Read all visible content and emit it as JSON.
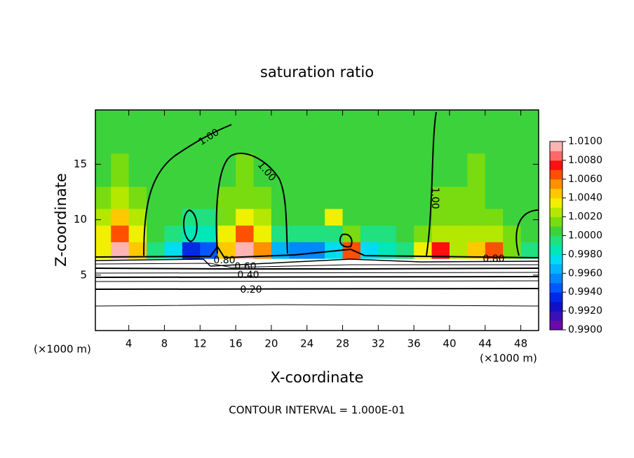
{
  "chart_data": {
    "type": "contour",
    "title": "saturation ratio",
    "x_label": "X-coordinate",
    "y_label": "Z-coordinate",
    "x_unit": "(×1000 m)",
    "x_unit_right": "(×1000 m)",
    "footer": "CONTOUR INTERVAL = 1.000E-01",
    "xlim": [
      0.25,
      50
    ],
    "ylim": [
      0,
      19.9
    ],
    "xticks": [
      4,
      8,
      12,
      16,
      20,
      24,
      28,
      32,
      36,
      40,
      44,
      48
    ],
    "yticks": [
      5,
      10,
      15
    ],
    "xbins": [
      0,
      2,
      4,
      6,
      8,
      10,
      12,
      14,
      16,
      18,
      20,
      22,
      24,
      26,
      28,
      30,
      32,
      34,
      36,
      38,
      40,
      42,
      44,
      46,
      48,
      50
    ],
    "ybins": [
      6.5,
      8,
      9.5,
      11,
      13,
      16,
      19.9
    ],
    "z": [
      [
        1.003,
        1.009,
        1.004,
        0.999,
        0.997,
        0.993,
        0.994,
        1.004,
        1.009,
        1.005,
        0.996,
        0.995,
        0.995,
        0.997,
        1.006,
        0.997,
        0.998,
        0.999,
        1.003,
        1.007,
        1.002,
        1.004,
        1.006,
        1.001,
        0.999
      ],
      [
        1.003,
        1.006,
        1.003,
        1.0005,
        0.999,
        0.998,
        0.998,
        1.003,
        1.006,
        1.003,
        0.999,
        0.999,
        0.999,
        0.999,
        1.001,
        0.999,
        0.999,
        1.0005,
        1.001,
        1.002,
        1.002,
        1.002,
        1.002,
        1.001,
        1.0005
      ],
      [
        1.002,
        1.004,
        1.002,
        1.0005,
        1.0005,
        0.999,
        0.999,
        1.001,
        1.003,
        1.002,
        1.0005,
        1.0005,
        1.0005,
        1.003,
        1.0005,
        1.0005,
        1.0005,
        1.0005,
        1.0005,
        1.001,
        1.001,
        1.001,
        1.001,
        1.0005,
        1.0005
      ],
      [
        1.001,
        1.002,
        1.001,
        1.0005,
        1.0005,
        1.0005,
        1.0005,
        1.001,
        1.001,
        1.001,
        1.0005,
        1.0005,
        1.0005,
        1.0005,
        1.0005,
        1.0005,
        1.0005,
        1.0005,
        1.0005,
        1.001,
        1.001,
        1.001,
        1.0005,
        1.0005,
        1.0005
      ],
      [
        1.0005,
        1.001,
        1.0005,
        1.0005,
        1.0005,
        1.0005,
        1.0005,
        1.0005,
        1.001,
        1.0005,
        1.0005,
        1.0005,
        1.0005,
        1.0005,
        1.0005,
        1.0005,
        1.0005,
        1.0005,
        1.0005,
        1.0005,
        1.0005,
        1.001,
        1.0005,
        1.0005,
        1.0005
      ],
      [
        1.0005,
        1.0005,
        1.0005,
        1.0005,
        1.0005,
        1.0005,
        1.0005,
        1.0005,
        1.0005,
        1.0005,
        1.0005,
        1.0005,
        1.0005,
        1.0005,
        1.0005,
        1.0005,
        1.0005,
        1.0005,
        1.0005,
        1.0005,
        1.0005,
        1.0005,
        1.0005,
        1.0005,
        1.0005
      ]
    ],
    "colorbar": {
      "clim": [
        0.99,
        1.01
      ],
      "ticks": [
        {
          "value": 1.01,
          "label": "1.0100"
        },
        {
          "value": 1.008,
          "label": "1.0080"
        },
        {
          "value": 1.006,
          "label": "1.0060"
        },
        {
          "value": 1.004,
          "label": "1.0040"
        },
        {
          "value": 1.002,
          "label": "1.0020"
        },
        {
          "value": 1.0,
          "label": "1.0000"
        },
        {
          "value": 0.998,
          "label": "0.9980"
        },
        {
          "value": 0.996,
          "label": "0.9960"
        },
        {
          "value": 0.994,
          "label": "0.9940"
        },
        {
          "value": 0.992,
          "label": "0.9920"
        },
        {
          "value": 0.99,
          "label": "0.9900"
        }
      ],
      "colors": [
        "#6a0aa8",
        "#3a10b8",
        "#1010c8",
        "#0028e8",
        "#0058ff",
        "#0088ff",
        "#00b4ff",
        "#00dcf0",
        "#00e8b8",
        "#20e080",
        "#3cd23c",
        "#78dc10",
        "#b4e800",
        "#f0f000",
        "#ffc800",
        "#ff9000",
        "#ff5000",
        "#ff1010",
        "#ff6868",
        "#ffb4b4"
      ]
    },
    "contour_labels": [
      "1.00",
      "1.00",
      "1.00",
      "0.80",
      "0.60",
      "0.40",
      "0.20",
      "0.80"
    ]
  }
}
